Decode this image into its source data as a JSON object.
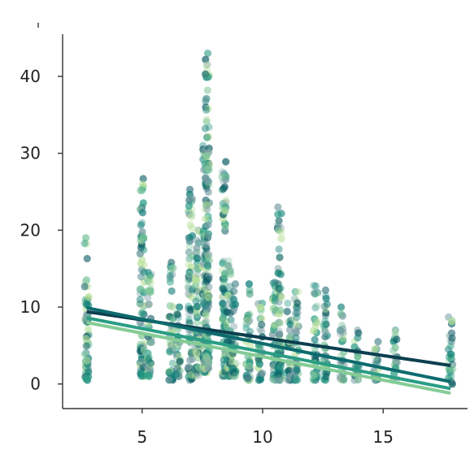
{
  "chart_data": {
    "type": "scatter",
    "title": "",
    "xlabel": "",
    "ylabel": "",
    "xlim": [
      1.7,
      18.5
    ],
    "ylim": [
      -3.2,
      45.5
    ],
    "x_ticks": [
      5,
      10,
      15
    ],
    "y_ticks": [
      0,
      10,
      20,
      30,
      40
    ],
    "x_tick_labels": [
      "5",
      "10",
      "15"
    ],
    "y_tick_labels": [
      "0",
      "10",
      "20",
      "30",
      "40"
    ],
    "grid": false,
    "legend": "none",
    "point_colors": [
      "#0b5b63",
      "#13807a",
      "#2a9d84",
      "#7fc69b",
      "#b8e09a",
      "#7a9ea5"
    ],
    "strips": [
      {
        "x": 2.7,
        "ymin": 0.5,
        "ymax": 19.0
      },
      {
        "x": 5.0,
        "ymin": 1.0,
        "ymax": 26.7
      },
      {
        "x": 5.3,
        "ymin": 1.0,
        "ymax": 14.5
      },
      {
        "x": 6.2,
        "ymin": 0.5,
        "ymax": 15.8
      },
      {
        "x": 6.5,
        "ymin": 1.0,
        "ymax": 10.0
      },
      {
        "x": 7.0,
        "ymin": 0.5,
        "ymax": 25.3
      },
      {
        "x": 7.3,
        "ymin": 1.0,
        "ymax": 20.0
      },
      {
        "x": 7.6,
        "ymin": 1.5,
        "ymax": 31.0
      },
      {
        "x": 7.7,
        "ymin": 2.0,
        "ymax": 43.0
      },
      {
        "x": 8.4,
        "ymin": 1.0,
        "ymax": 28.9
      },
      {
        "x": 8.6,
        "ymin": 1.0,
        "ymax": 16.0
      },
      {
        "x": 8.8,
        "ymin": 1.0,
        "ymax": 13.0
      },
      {
        "x": 9.4,
        "ymin": 0.5,
        "ymax": 13.0
      },
      {
        "x": 9.9,
        "ymin": 0.5,
        "ymax": 10.5
      },
      {
        "x": 10.5,
        "ymin": 0.5,
        "ymax": 13.2
      },
      {
        "x": 10.7,
        "ymin": 0.5,
        "ymax": 23.0
      },
      {
        "x": 11.1,
        "ymin": 0.5,
        "ymax": 10.5
      },
      {
        "x": 11.4,
        "ymin": 0.5,
        "ymax": 12.0
      },
      {
        "x": 12.2,
        "ymin": 0.5,
        "ymax": 12.8
      },
      {
        "x": 12.6,
        "ymin": 0.5,
        "ymax": 12.2
      },
      {
        "x": 13.3,
        "ymin": 0.5,
        "ymax": 10.0
      },
      {
        "x": 13.9,
        "ymin": 0.5,
        "ymax": 7.0
      },
      {
        "x": 14.7,
        "ymin": 0.5,
        "ymax": 5.5
      },
      {
        "x": 15.5,
        "ymin": 0.5,
        "ymax": 7.0
      },
      {
        "x": 17.8,
        "ymin": 0.0,
        "ymax": 8.7
      }
    ],
    "regression_lines": [
      {
        "color": "#0c3f4f",
        "x": [
          2.7,
          17.8
        ],
        "y": [
          9.4,
          2.4
        ]
      },
      {
        "color": "#0d6b6e",
        "x": [
          2.7,
          17.8
        ],
        "y": [
          9.9,
          0.3
        ]
      },
      {
        "color": "#2a9d84",
        "x": [
          2.7,
          17.8
        ],
        "y": [
          8.6,
          -0.6
        ]
      },
      {
        "color": "#84cc95",
        "x": [
          2.7,
          17.8
        ],
        "y": [
          8.0,
          -1.2
        ]
      }
    ]
  }
}
